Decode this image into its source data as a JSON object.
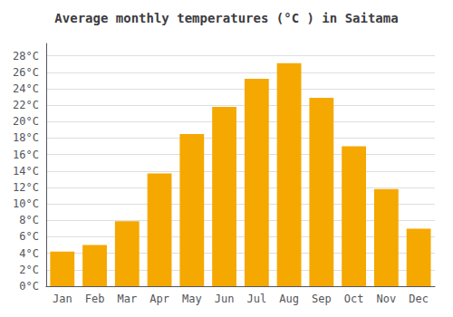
{
  "chart_data": {
    "type": "bar",
    "title": "Average monthly temperatures (°C ) in Saitama",
    "categories": [
      "Jan",
      "Feb",
      "Mar",
      "Apr",
      "May",
      "Jun",
      "Jul",
      "Aug",
      "Sep",
      "Oct",
      "Nov",
      "Dec"
    ],
    "values": [
      4.2,
      5.0,
      7.9,
      13.7,
      18.5,
      21.8,
      25.2,
      27.1,
      22.9,
      17.0,
      11.8,
      7.0
    ],
    "color": "#F5A800",
    "ylim": [
      0,
      29.5
    ],
    "yticks": [
      {
        "value": 0,
        "label": "0°C"
      },
      {
        "value": 2,
        "label": "2°C"
      },
      {
        "value": 4,
        "label": "4°C"
      },
      {
        "value": 6,
        "label": "6°C"
      },
      {
        "value": 8,
        "label": "8°C"
      },
      {
        "value": 10,
        "label": "10°C"
      },
      {
        "value": 12,
        "label": "12°C"
      },
      {
        "value": 14,
        "label": "14°C"
      },
      {
        "value": 16,
        "label": "16°C"
      },
      {
        "value": 18,
        "label": "18°C"
      },
      {
        "value": 20,
        "label": "20°C"
      },
      {
        "value": 22,
        "label": "22°C"
      },
      {
        "value": 24,
        "label": "24°C"
      },
      {
        "value": 26,
        "label": "26°C"
      },
      {
        "value": 28,
        "label": "28°C"
      }
    ],
    "grid": true
  }
}
